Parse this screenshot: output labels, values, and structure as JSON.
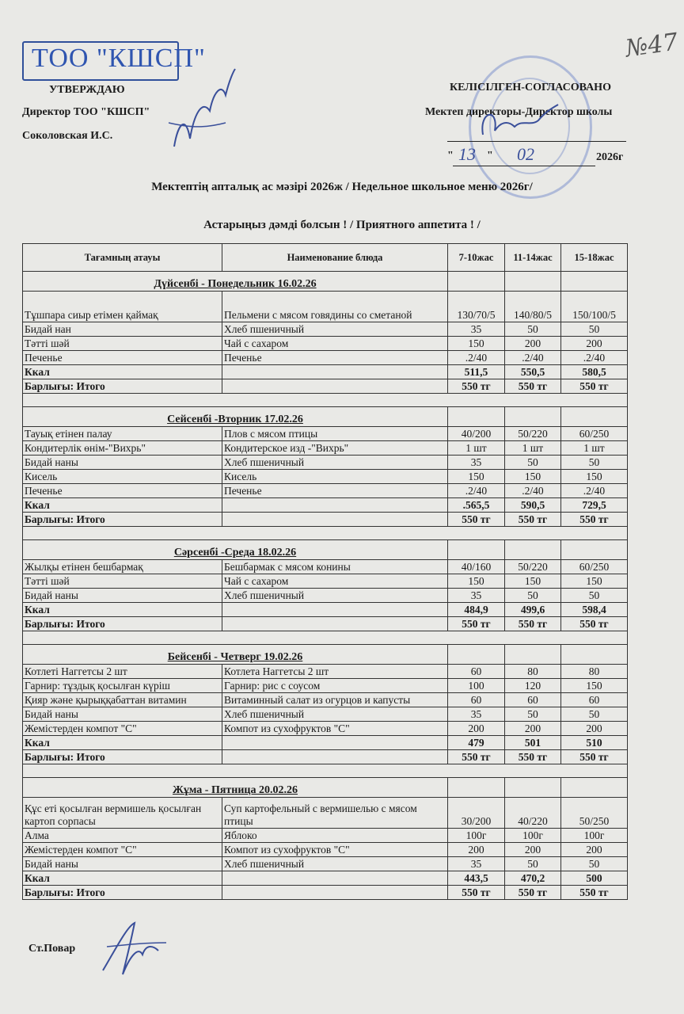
{
  "handwritten_number": "№47",
  "stamp_company": "ТОО \"КШСП\"",
  "approval": {
    "heading": "УТВЕРЖДАЮ",
    "position": "Директор ТОО \"КШСП\"",
    "name": "Соколовская И.С."
  },
  "agreement": {
    "heading": "КЕЛІСІЛГЕН-СОГЛАСОВАНО",
    "position": "Мектеп директоры-Директор школы",
    "date_day": "13",
    "date_month": "02",
    "date_year": "2026г"
  },
  "title": "Мектептің апталық ас мәзірі  2026ж / Недельное школьное меню   2026г/",
  "subtitle": "Астарыңыз дәмді болсын !    /   Приятного аппетита ! /",
  "table": {
    "headers": [
      "Тағамның атауы",
      "Наименование блюда",
      "7-10жас",
      "11-14жас",
      "15-18жас"
    ],
    "kcal_label": "Ккал",
    "total_label": "Барлығы: Итого",
    "days": [
      {
        "title": "Дүйсенбі - Понедельник    16.02.26",
        "rows": [
          {
            "kz": "Тұшпара сиыр етімен қаймақ",
            "ru": "Пельмени с мясом говядины со сметаной",
            "v": [
              "130/70/5",
              "140/80/5",
              "150/100/5"
            ],
            "two": true
          },
          {
            "kz": "Бидай нан",
            "ru": "Хлеб пшеничный",
            "v": [
              "35",
              "50",
              "50"
            ]
          },
          {
            "kz": "Тәтті шәй",
            "ru": "Чай с сахаром",
            "v": [
              "150",
              "200",
              "200"
            ]
          },
          {
            "kz": "Печенье",
            "ru": "Печенье",
            "v": [
              ".2/40",
              ".2/40",
              ".2/40"
            ]
          }
        ],
        "kcal": [
          "511,5",
          "550,5",
          "580,5"
        ],
        "total": [
          "550 тг",
          "550 тг",
          "550 тг"
        ]
      },
      {
        "title": "Сейсенбі -Вторник   17.02.26",
        "rows": [
          {
            "kz": "Тауық етінен палау",
            "ru": "Плов с мясом птицы",
            "v": [
              "40/200",
              "50/220",
              "60/250"
            ]
          },
          {
            "kz": "Кондитерлік өнім-\"Вихрь\"",
            "ru": "Кондитерское изд -\"Вихрь\"",
            "v": [
              "1 шт",
              "1 шт",
              "1 шт"
            ]
          },
          {
            "kz": "Бидай наны",
            "ru": "Хлеб пшеничный",
            "v": [
              "35",
              "50",
              "50"
            ]
          },
          {
            "kz": "Кисель",
            "ru": "Кисель",
            "v": [
              "150",
              "150",
              "150"
            ]
          },
          {
            "kz": "Печенье",
            "ru": "Печенье",
            "v": [
              ".2/40",
              ".2/40",
              ".2/40"
            ]
          }
        ],
        "kcal": [
          ".565,5",
          "590,5",
          "729,5"
        ],
        "total": [
          "550 тг",
          "550 тг",
          "550 тг"
        ]
      },
      {
        "title": "Сәрсенбі -Среда    18.02.26",
        "rows": [
          {
            "kz": "Жылқы етінен бешбармақ",
            "ru": "Бешбармак с мясом конины",
            "v": [
              "40/160",
              "50/220",
              "60/250"
            ]
          },
          {
            "kz": "Тәтті шәй",
            "ru": "Чай с сахаром",
            "v": [
              "150",
              "150",
              "150"
            ]
          },
          {
            "kz": "Бидай наны",
            "ru": "Хлеб пшеничный",
            "v": [
              "35",
              "50",
              "50"
            ]
          }
        ],
        "kcal": [
          "484,9",
          "499,6",
          "598,4"
        ],
        "total": [
          "550 тг",
          "550 тг",
          "550 тг"
        ]
      },
      {
        "title": "Бейсенбі - Четверг    19.02.26",
        "rows": [
          {
            "kz": "Котлеті Наггетсы 2 шт",
            "ru": "Котлета Наггетсы 2 шт",
            "v": [
              "60",
              "80",
              "80"
            ]
          },
          {
            "kz": "Гарнир: тұздық қосылған күріш",
            "ru": "Гарнир: рис с соусом",
            "v": [
              "100",
              "120",
              "150"
            ]
          },
          {
            "kz": "Қияр және қырыққабаттан витамин",
            "ru": "Витаминный салат из огурцов и капусты",
            "v": [
              "60",
              "60",
              "60"
            ]
          },
          {
            "kz": "Бидай наны",
            "ru": "Хлеб пшеничный",
            "v": [
              "35",
              "50",
              "50"
            ]
          },
          {
            "kz": "Жемістерден компот \"С\"",
            "ru": "Компот из сухофруктов \"С\"",
            "v": [
              "200",
              "200",
              "200"
            ]
          }
        ],
        "kcal": [
          "479",
          "501",
          "510"
        ],
        "total": [
          "550 тг",
          "550 тг",
          "550 тг"
        ]
      },
      {
        "title": "Жұма - Пятница    20.02.26",
        "rows": [
          {
            "kz": "Құс еті қосылған вермишель қосылған картоп сорпасы",
            "ru": "Суп картофельный с вермишелью с мясом птицы",
            "v": [
              "30/200",
              "40/220",
              "50/250"
            ],
            "two": true
          },
          {
            "kz": "Алма",
            "ru": "Яблоко",
            "v": [
              "100г",
              "100г",
              "100г"
            ]
          },
          {
            "kz": "Жемістерден компот \"С\"",
            "ru": "Компот из сухофруктов \"С\"",
            "v": [
              "200",
              "200",
              "200"
            ]
          },
          {
            "kz": "Бидай наны",
            "ru": "Хлеб пшеничный",
            "v": [
              "35",
              "50",
              "50"
            ]
          }
        ],
        "kcal": [
          "443,5",
          "470,2",
          "500"
        ],
        "total": [
          "550 тг",
          "550 тг",
          "550 тг"
        ]
      }
    ]
  },
  "footer": {
    "cook_label": "Ст.Повар"
  },
  "colors": {
    "stamp_blue": "#2f55b0",
    "paper": "#e9e9e6",
    "ink": "#1a1a1a"
  }
}
